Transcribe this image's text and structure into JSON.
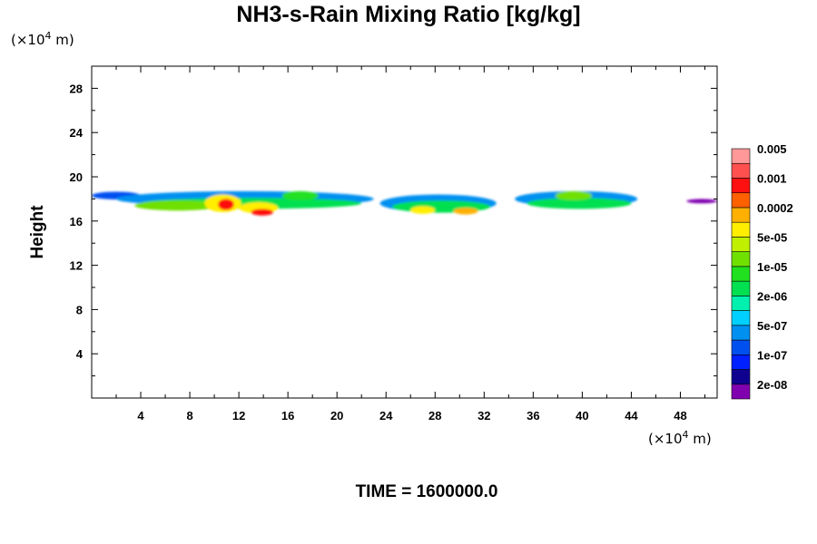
{
  "chart_data": {
    "type": "heatmap",
    "title": "NH3-s-Rain Mixing Ratio [kg/kg]",
    "ylabel": "Height",
    "xlabel": "",
    "x_unit": "(×10",
    "x_unit_exp": "4",
    "x_unit_tail": " m)",
    "y_unit": "(×10",
    "y_unit_exp": "4",
    "y_unit_tail": " m)",
    "footer": "TIME = 1600000.0",
    "xlim": [
      0,
      51
    ],
    "ylim": [
      0,
      30
    ],
    "x_ticks": [
      "4",
      "8",
      "12",
      "16",
      "20",
      "24",
      "28",
      "32",
      "36",
      "40",
      "44",
      "48"
    ],
    "y_ticks": [
      "4",
      "8",
      "12",
      "16",
      "20",
      "24",
      "28"
    ],
    "colorbar": {
      "colors": [
        "#8000b0",
        "#100090",
        "#0020ff",
        "#0050f0",
        "#0090f0",
        "#00d0ff",
        "#00f0b0",
        "#00e050",
        "#20e020",
        "#70e000",
        "#c0f000",
        "#ffee00",
        "#ffb000",
        "#ff6000",
        "#ff1010",
        "#ff5050",
        "#ff9898"
      ],
      "labels": [
        "2e-08",
        "1e-07",
        "5e-07",
        "2e-06",
        "1e-05",
        "5e-05",
        "0.0002",
        "0.001",
        "0.005"
      ]
    },
    "field": {
      "band_height_range": [
        15.5,
        20
      ],
      "blobs": [
        {
          "x": 0,
          "w": 4,
          "y": 18.3,
          "h": 0.7,
          "level": 3
        },
        {
          "x": 2,
          "w": 21,
          "y": 18.0,
          "h": 1.4,
          "level": 4
        },
        {
          "x": 4,
          "w": 18,
          "y": 17.6,
          "h": 1.0,
          "level": 7
        },
        {
          "x": 3.5,
          "w": 7,
          "y": 17.4,
          "h": 0.9,
          "level": 9
        },
        {
          "x": 9.2,
          "w": 3,
          "y": 17.6,
          "h": 1.6,
          "level": 11
        },
        {
          "x": 10.3,
          "w": 1.3,
          "y": 17.5,
          "h": 1.0,
          "level": 14
        },
        {
          "x": 12.0,
          "w": 3.2,
          "y": 17.2,
          "h": 1.0,
          "level": 11
        },
        {
          "x": 13.0,
          "w": 1.8,
          "y": 16.8,
          "h": 0.6,
          "level": 14
        },
        {
          "x": 15.5,
          "w": 3,
          "y": 18.3,
          "h": 0.8,
          "level": 8
        },
        {
          "x": 23.5,
          "w": 9.5,
          "y": 17.6,
          "h": 1.6,
          "level": 4
        },
        {
          "x": 24.5,
          "w": 8,
          "y": 17.3,
          "h": 1.1,
          "level": 7
        },
        {
          "x": 26.0,
          "w": 2,
          "y": 17.0,
          "h": 0.7,
          "level": 11
        },
        {
          "x": 29.5,
          "w": 2,
          "y": 16.9,
          "h": 0.6,
          "level": 12
        },
        {
          "x": 34.5,
          "w": 10,
          "y": 18.0,
          "h": 1.4,
          "level": 4
        },
        {
          "x": 35.5,
          "w": 8.5,
          "y": 17.6,
          "h": 1.0,
          "level": 7
        },
        {
          "x": 37.8,
          "w": 3,
          "y": 18.3,
          "h": 0.8,
          "level": 9
        },
        {
          "x": 48.5,
          "w": 2.5,
          "y": 17.8,
          "h": 0.4,
          "level": 0
        }
      ]
    }
  }
}
